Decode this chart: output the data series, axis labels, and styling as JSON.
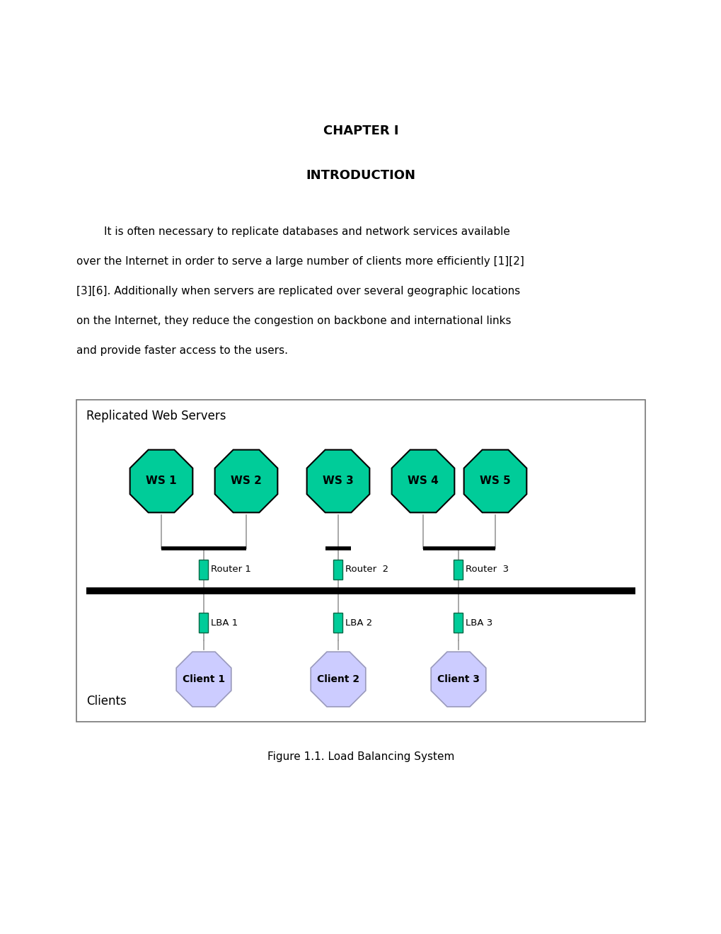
{
  "chapter_text": "CHAPTER I",
  "intro_text": "INTRODUCTION",
  "figure_caption": "Figure 1.1. Load Balancing System",
  "box_label": "Replicated Web Servers",
  "clients_label": "Clients",
  "ws_color": "#00CC99",
  "ws_edge_color": "#000000",
  "router_color": "#00CC99",
  "lba_color": "#00CC99",
  "client_color": "#CCCCFF",
  "client_edge_color": "#9999BB",
  "ws_labels": [
    "WS 1",
    "WS 2",
    "WS 3",
    "WS 4",
    "WS 5"
  ],
  "router_labels": [
    "Router 1",
    "Router  2",
    "Router  3"
  ],
  "lba_labels": [
    "LBA 1",
    "LBA 2",
    "LBA 3"
  ],
  "client_labels": [
    "Client 1",
    "Client 2",
    "Client 3"
  ],
  "background_color": "#ffffff",
  "body_lines": [
    "        It is often necessary to replicate databases and network services available",
    "over the Internet in order to serve a large number of clients more efficiently [1][2]",
    "[3][6]. Additionally when servers are replicated over several geographic locations",
    "on the Internet, they reduce the congestion on backbone and international links",
    "and provide faster access to the users."
  ]
}
